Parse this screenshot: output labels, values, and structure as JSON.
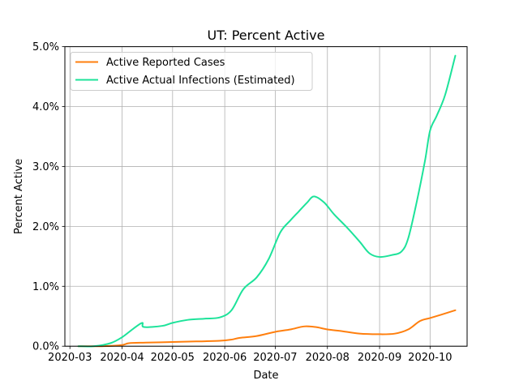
{
  "chart_data": {
    "type": "line",
    "title": "UT: Percent Active",
    "xlabel": "Date",
    "ylabel": "Percent Active",
    "x_type": "date",
    "xlim": [
      "2020-02-27",
      "2020-10-23"
    ],
    "ylim": [
      0,
      5.0
    ],
    "x_ticks": [
      "2020-03",
      "2020-04",
      "2020-05",
      "2020-06",
      "2020-07",
      "2020-08",
      "2020-09",
      "2020-10"
    ],
    "y_ticks": [
      "0.0%",
      "1.0%",
      "2.0%",
      "3.0%",
      "4.0%",
      "5.0%"
    ],
    "y_tick_values": [
      0,
      1,
      2,
      3,
      4,
      5
    ],
    "grid": true,
    "legend_position": "top-left",
    "series": [
      {
        "name": "Active Reported Cases",
        "color": "#ff7f0e",
        "points": [
          [
            "2020-03-06",
            0.0
          ],
          [
            "2020-03-20",
            0.0
          ],
          [
            "2020-04-01",
            0.02
          ],
          [
            "2020-04-05",
            0.05
          ],
          [
            "2020-04-15",
            0.06
          ],
          [
            "2020-05-01",
            0.07
          ],
          [
            "2020-05-15",
            0.08
          ],
          [
            "2020-05-29",
            0.09
          ],
          [
            "2020-06-05",
            0.11
          ],
          [
            "2020-06-10",
            0.14
          ],
          [
            "2020-06-20",
            0.17
          ],
          [
            "2020-07-01",
            0.24
          ],
          [
            "2020-07-10",
            0.28
          ],
          [
            "2020-07-18",
            0.33
          ],
          [
            "2020-07-25",
            0.32
          ],
          [
            "2020-08-01",
            0.28
          ],
          [
            "2020-08-10",
            0.25
          ],
          [
            "2020-08-20",
            0.21
          ],
          [
            "2020-08-31",
            0.2
          ],
          [
            "2020-09-10",
            0.21
          ],
          [
            "2020-09-18",
            0.28
          ],
          [
            "2020-09-25",
            0.42
          ],
          [
            "2020-10-01",
            0.47
          ],
          [
            "2020-10-08",
            0.53
          ],
          [
            "2020-10-16",
            0.6
          ]
        ]
      },
      {
        "name": "Active Actual Infections (Estimated)",
        "color": "#1de39a",
        "points": [
          [
            "2020-03-06",
            0.0
          ],
          [
            "2020-03-15",
            0.0
          ],
          [
            "2020-03-25",
            0.05
          ],
          [
            "2020-04-01",
            0.15
          ],
          [
            "2020-04-08",
            0.3
          ],
          [
            "2020-04-13",
            0.39
          ],
          [
            "2020-04-14",
            0.32
          ],
          [
            "2020-04-25",
            0.34
          ],
          [
            "2020-05-01",
            0.39
          ],
          [
            "2020-05-10",
            0.44
          ],
          [
            "2020-05-20",
            0.46
          ],
          [
            "2020-05-29",
            0.48
          ],
          [
            "2020-06-05",
            0.6
          ],
          [
            "2020-06-12",
            0.95
          ],
          [
            "2020-06-20",
            1.15
          ],
          [
            "2020-06-27",
            1.45
          ],
          [
            "2020-07-04",
            1.9
          ],
          [
            "2020-07-10",
            2.1
          ],
          [
            "2020-07-15",
            2.25
          ],
          [
            "2020-07-20",
            2.4
          ],
          [
            "2020-07-24",
            2.5
          ],
          [
            "2020-07-30",
            2.4
          ],
          [
            "2020-08-05",
            2.2
          ],
          [
            "2020-08-12",
            2.0
          ],
          [
            "2020-08-20",
            1.75
          ],
          [
            "2020-08-26",
            1.55
          ],
          [
            "2020-09-01",
            1.49
          ],
          [
            "2020-09-08",
            1.52
          ],
          [
            "2020-09-14",
            1.58
          ],
          [
            "2020-09-18",
            1.8
          ],
          [
            "2020-09-23",
            2.4
          ],
          [
            "2020-09-28",
            3.1
          ],
          [
            "2020-10-01",
            3.6
          ],
          [
            "2020-10-05",
            3.85
          ],
          [
            "2020-10-10",
            4.2
          ],
          [
            "2020-10-16",
            4.85
          ]
        ]
      }
    ]
  }
}
